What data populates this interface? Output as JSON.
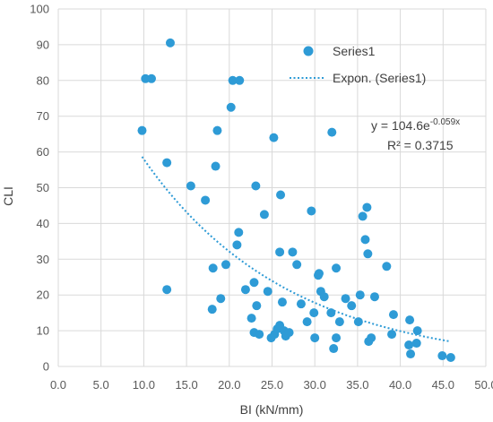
{
  "chart_data": {
    "type": "scatter",
    "xlabel": "BI (kN/mm)",
    "ylabel": "CLI",
    "xlim": [
      0,
      50
    ],
    "ylim": [
      0,
      100
    ],
    "x_ticks": [
      "0.0",
      "5.0",
      "10.0",
      "15.0",
      "20.0",
      "25.0",
      "30.0",
      "35.0",
      "40.0",
      "45.0",
      "50.0"
    ],
    "y_ticks": [
      "0",
      "10",
      "20",
      "30",
      "40",
      "50",
      "60",
      "70",
      "80",
      "90",
      "100"
    ],
    "grid": true,
    "legend_position": "top-right",
    "colors": {
      "series": "#2e9bd6",
      "trend": "#2e9bd6",
      "grid": "#d9d9d9"
    },
    "series": [
      {
        "name": "Series1",
        "points": [
          [
            9.8,
            66
          ],
          [
            10.2,
            80.5
          ],
          [
            10.9,
            80.5
          ],
          [
            13.1,
            90.5
          ],
          [
            12.7,
            57
          ],
          [
            12.7,
            21.5
          ],
          [
            15.5,
            50.5
          ],
          [
            17.2,
            46.5
          ],
          [
            18,
            16
          ],
          [
            18.1,
            27.5
          ],
          [
            18.4,
            56
          ],
          [
            18.6,
            66
          ],
          [
            19,
            19
          ],
          [
            19.6,
            28.5
          ],
          [
            20.2,
            72.5
          ],
          [
            20.4,
            80
          ],
          [
            20.9,
            34
          ],
          [
            21.1,
            37.5
          ],
          [
            21.2,
            80
          ],
          [
            21.9,
            21.5
          ],
          [
            22.6,
            13.5
          ],
          [
            22.9,
            23.5
          ],
          [
            22.9,
            9.5
          ],
          [
            23.1,
            50.5
          ],
          [
            23.2,
            17
          ],
          [
            23.5,
            9
          ],
          [
            24.1,
            42.5
          ],
          [
            24.5,
            21
          ],
          [
            24.9,
            8
          ],
          [
            25.2,
            64
          ],
          [
            25.3,
            9
          ],
          [
            25.6,
            10.5
          ],
          [
            25.9,
            11.5
          ],
          [
            25.9,
            32
          ],
          [
            26,
            48
          ],
          [
            26.2,
            18
          ],
          [
            26.4,
            10
          ],
          [
            26.6,
            8.5
          ],
          [
            27,
            9.5
          ],
          [
            27.4,
            32
          ],
          [
            27.9,
            28.5
          ],
          [
            28.4,
            17.5
          ],
          [
            29.1,
            12.5
          ],
          [
            29.6,
            43.5
          ],
          [
            29.9,
            15
          ],
          [
            30,
            8
          ],
          [
            30.4,
            25.5
          ],
          [
            30.5,
            26
          ],
          [
            30.7,
            21
          ],
          [
            31.1,
            19.5
          ],
          [
            31.9,
            15
          ],
          [
            32,
            65.5
          ],
          [
            32.2,
            5
          ],
          [
            32.5,
            27.5
          ],
          [
            32.5,
            8
          ],
          [
            32.9,
            12.5
          ],
          [
            33.6,
            19
          ],
          [
            34.3,
            17
          ],
          [
            35.1,
            12.5
          ],
          [
            35.3,
            20
          ],
          [
            35.6,
            42
          ],
          [
            35.9,
            35.5
          ],
          [
            36.1,
            44.5
          ],
          [
            36.2,
            31.5
          ],
          [
            36.3,
            7
          ],
          [
            36.6,
            8
          ],
          [
            37,
            19.5
          ],
          [
            38.4,
            28
          ],
          [
            39,
            9
          ],
          [
            39.2,
            14.5
          ],
          [
            41,
            6
          ],
          [
            41.2,
            3.5
          ],
          [
            41.1,
            13
          ],
          [
            41.9,
            6.5
          ],
          [
            42,
            10
          ],
          [
            44.9,
            3
          ],
          [
            45.9,
            2.5
          ]
        ]
      },
      {
        "name": "Expon. (Series1)",
        "kind": "exponential-trendline",
        "a": 104.6,
        "b": -0.059,
        "x_range": [
          9.8,
          45.9
        ]
      }
    ],
    "annotations": {
      "equation_prefix": "y = 104.6e",
      "equation_exponent": "-0.059x",
      "r_squared": "R² = 0.3715"
    }
  }
}
